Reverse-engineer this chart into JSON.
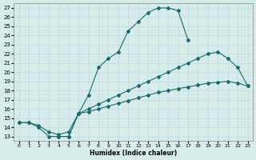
{
  "xlabel": "Humidex (Indice chaleur)",
  "ylabel": "",
  "bg_color": "#d6ecea",
  "grid_color": "#c0d8d8",
  "line_color": "#1a6b6b",
  "xlim": [
    -0.5,
    23.5
  ],
  "ylim": [
    12.5,
    27.5
  ],
  "xticks": [
    0,
    1,
    2,
    3,
    4,
    5,
    6,
    7,
    8,
    9,
    10,
    11,
    12,
    13,
    14,
    15,
    16,
    17,
    18,
    19,
    20,
    21,
    22,
    23
  ],
  "yticks": [
    13,
    14,
    15,
    16,
    17,
    18,
    19,
    20,
    21,
    22,
    23,
    24,
    25,
    26,
    27
  ],
  "curve1_x": [
    0,
    1,
    2,
    3,
    4,
    5,
    6,
    7,
    8,
    9,
    10,
    11,
    12,
    13,
    14,
    15,
    16,
    17
  ],
  "curve1_y": [
    14.5,
    14.5,
    14.0,
    13.0,
    13.0,
    13.0,
    15.5,
    17.5,
    20.5,
    21.5,
    22.2,
    24.5,
    25.5,
    26.5,
    27.0,
    27.0,
    26.7,
    23.5
  ],
  "curve2_x": [
    4,
    5,
    6,
    7,
    8,
    9,
    10,
    11,
    12,
    13,
    14,
    15,
    16,
    17,
    18,
    19,
    20,
    21,
    22,
    23
  ],
  "curve2_y": [
    13.0,
    13.0,
    15.5,
    16.0,
    16.5,
    17.0,
    17.5,
    18.0,
    18.5,
    19.0,
    19.5,
    20.0,
    20.5,
    21.0,
    21.5,
    22.0,
    22.2,
    21.5,
    20.5,
    18.5
  ],
  "curve3_x": [
    0,
    1,
    2,
    3,
    4,
    5,
    6,
    7,
    8,
    9,
    10,
    11,
    12,
    13,
    14,
    15,
    16,
    17,
    18,
    19,
    20,
    21,
    22,
    23
  ],
  "curve3_y": [
    14.5,
    14.5,
    14.2,
    13.5,
    13.2,
    13.5,
    15.5,
    15.7,
    16.0,
    16.3,
    16.6,
    16.9,
    17.2,
    17.5,
    17.8,
    18.0,
    18.2,
    18.4,
    18.6,
    18.8,
    18.9,
    19.0,
    18.8,
    18.5
  ]
}
